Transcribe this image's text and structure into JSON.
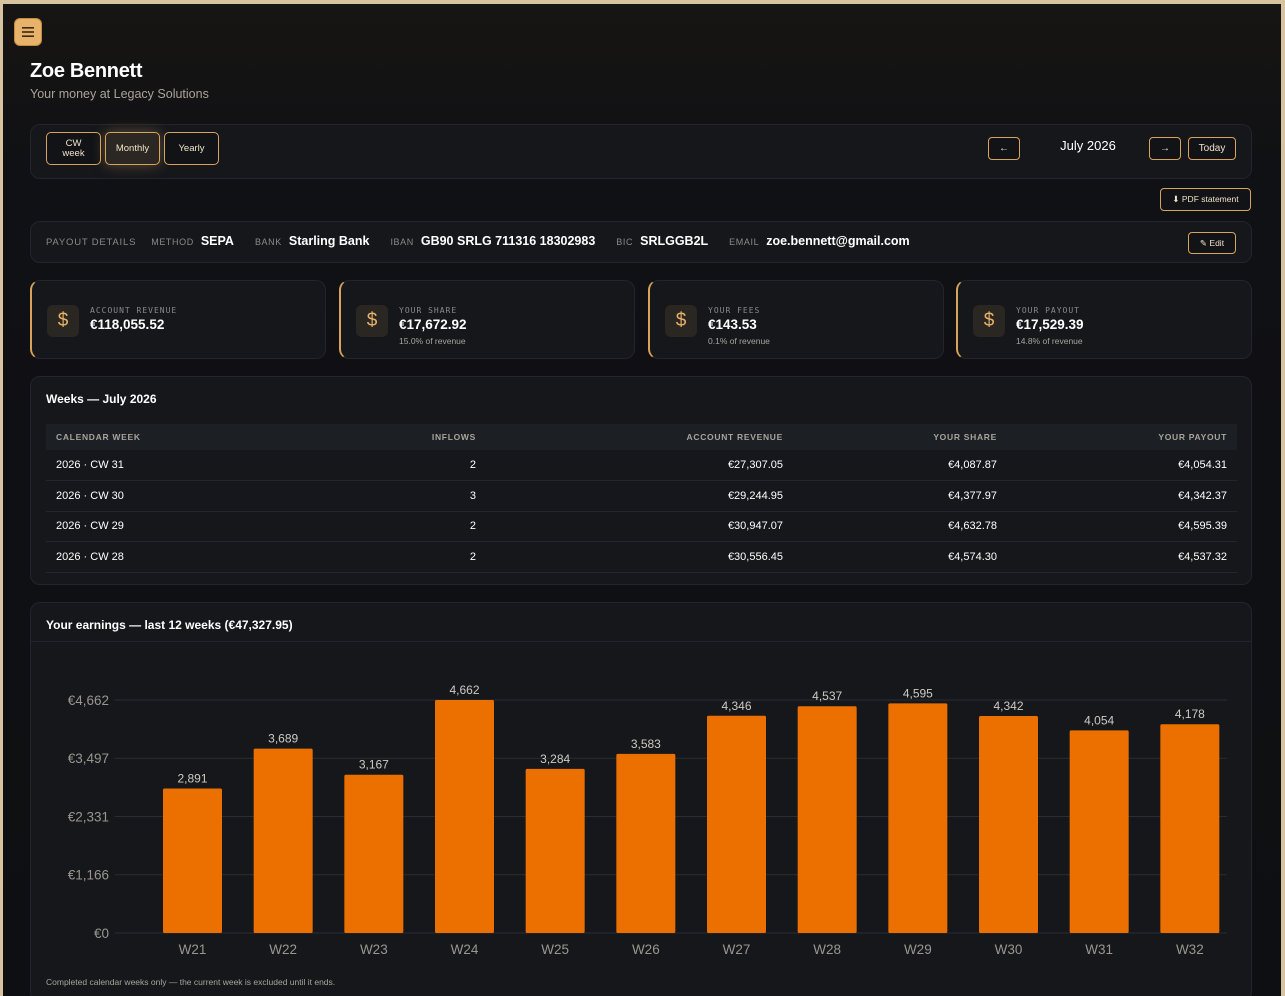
{
  "header": {
    "name": "Zoe Bennett",
    "subtitle": "Your money at Legacy Solutions"
  },
  "toolbar": {
    "segments": [
      {
        "label_line1": "CW",
        "label_line2": "week",
        "active": false
      },
      {
        "label": "Monthly",
        "active": true
      },
      {
        "label": "Yearly",
        "active": false
      }
    ],
    "prev_icon": "arrow-left-icon",
    "next_icon": "arrow-right-icon",
    "prev_label": "←",
    "next_label": "→",
    "period": "July 2026",
    "today_label": "Today"
  },
  "pdf_button": "⬇ PDF statement",
  "payout_details": {
    "heading": "PAYOUT DETAILS",
    "method_label": "METHOD",
    "method": "SEPA",
    "bank_label": "BANK",
    "bank": "Starling Bank",
    "iban_label": "IBAN",
    "iban": "GB90 SRLG 711316 18302983",
    "bic_label": "BIC",
    "bic": "SRLGGB2L",
    "email_label": "EMAIL",
    "email": "zoe.bennett@gmail.com",
    "edit_label": "✎ Edit"
  },
  "stats": [
    {
      "icon": "dollar-icon",
      "glyph": "$",
      "label": "ACCOUNT REVENUE",
      "value": "€118,055.52",
      "sub": ""
    },
    {
      "icon": "dollar-icon",
      "glyph": "$",
      "label": "YOUR SHARE",
      "value": "€17,672.92",
      "sub": "15.0% of revenue"
    },
    {
      "icon": "dollar-icon",
      "glyph": "$",
      "label": "YOUR FEES",
      "value": "€143.53",
      "sub": "0.1% of revenue"
    },
    {
      "icon": "dollar-icon",
      "glyph": "$",
      "label": "YOUR PAYOUT",
      "value": "€17,529.39",
      "sub": "14.8% of revenue"
    }
  ],
  "weeks": {
    "title": "Weeks — July 2026",
    "columns": [
      "CALENDAR WEEK",
      "INFLOWS",
      "ACCOUNT REVENUE",
      "YOUR SHARE",
      "YOUR PAYOUT"
    ],
    "rows": [
      [
        "2026 · CW 31",
        "2",
        "€27,307.05",
        "€4,087.87",
        "€4,054.31"
      ],
      [
        "2026 · CW 30",
        "3",
        "€29,244.95",
        "€4,377.97",
        "€4,342.37"
      ],
      [
        "2026 · CW 29",
        "2",
        "€30,947.07",
        "€4,632.78",
        "€4,595.39"
      ],
      [
        "2026 · CW 28",
        "2",
        "€30,556.45",
        "€4,574.30",
        "€4,537.32"
      ]
    ]
  },
  "earnings": {
    "title": "Your earnings — last 12 weeks (€47,327.95)",
    "footnote": "Completed calendar weeks only — the current week is excluded until it ends."
  },
  "chart_data": {
    "type": "bar",
    "categories": [
      "W21",
      "W22",
      "W23",
      "W24",
      "W25",
      "W26",
      "W27",
      "W28",
      "W29",
      "W30",
      "W31",
      "W32"
    ],
    "values": [
      2891,
      3689,
      3167,
      4662,
      3284,
      3583,
      4346,
      4537,
      4595,
      4342,
      4054,
      4178
    ],
    "data_labels": [
      "2,891",
      "3,689",
      "3,167",
      "4,662",
      "3,284",
      "3,583",
      "4,346",
      "4,537",
      "4,595",
      "4,342",
      "4,054",
      "4,178"
    ],
    "y_ticks": [
      0,
      1166,
      2331,
      3497,
      4662
    ],
    "y_tick_labels": [
      "€0",
      "€1,166",
      "€2,331",
      "€3,497",
      "€4,662"
    ],
    "ylim": [
      0,
      4662
    ],
    "grid": true,
    "bar_color": "#ec7000"
  }
}
